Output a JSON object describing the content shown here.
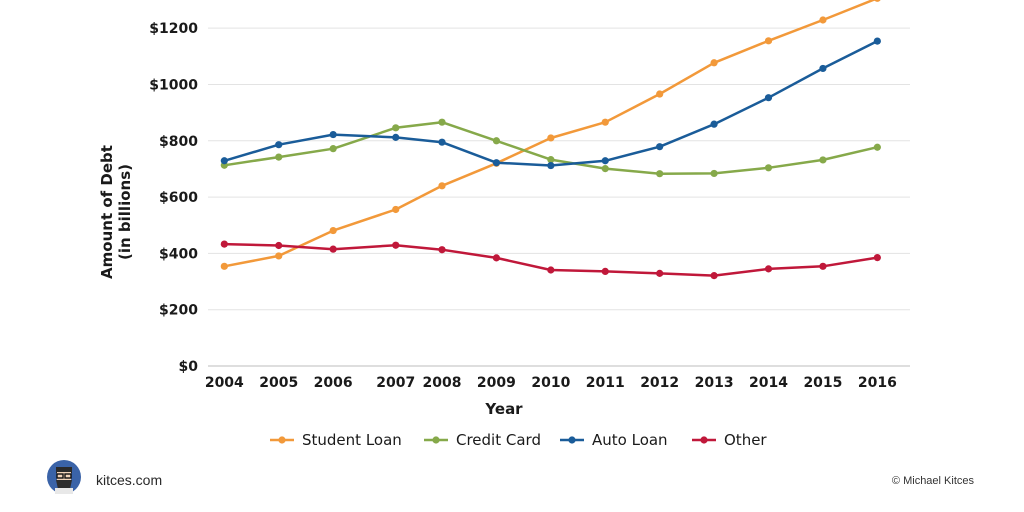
{
  "chart_data": {
    "type": "line",
    "categories": [
      "2004",
      "2005",
      "2006",
      "2007",
      "2008",
      "2009",
      "2010",
      "2011",
      "2012",
      "2013",
      "2014",
      "2015",
      "2016"
    ],
    "x": [
      2004,
      2005,
      2006,
      2007.15,
      2008,
      2009,
      2010,
      2011,
      2012,
      2013,
      2014,
      2015,
      2016
    ],
    "xlim": [
      2003.7,
      2016.6
    ],
    "ylim": [
      0,
      1300
    ],
    "yticks": [
      0,
      200,
      400,
      600,
      800,
      1000,
      1200
    ],
    "ytick_labels": [
      "$0",
      "$200",
      "$400",
      "$600",
      "$800",
      "$1000",
      "$1200"
    ],
    "ylabel_line1": "Amount of Debt",
    "ylabel_line2": "(in billions)",
    "xlabel": "Year",
    "grid": "horizontal",
    "legend_position": "bottom",
    "series": [
      {
        "name": "Student Loan",
        "color": "#f2993a",
        "values": [
          354,
          391,
          481,
          556,
          640,
          720,
          810,
          866,
          966,
          1077,
          1155,
          1229,
          1306
        ]
      },
      {
        "name": "Credit Card",
        "color": "#86a94a",
        "values": [
          713,
          742,
          772,
          846,
          866,
          800,
          733,
          701,
          683,
          684,
          704,
          732,
          777
        ]
      },
      {
        "name": "Auto Loan",
        "color": "#1a5c99",
        "values": [
          729,
          786,
          822,
          812,
          795,
          722,
          712,
          729,
          779,
          859,
          953,
          1057,
          1154
        ]
      },
      {
        "name": "Other",
        "color": "#c0183a",
        "values": [
          433,
          428,
          415,
          429,
          413,
          384,
          341,
          336,
          329,
          321,
          345,
          354,
          385
        ]
      }
    ]
  },
  "footer": {
    "site": "kitces.com",
    "credit": "© Michael Kitces",
    "logo_icon": "bearded-man-avatar-icon"
  }
}
